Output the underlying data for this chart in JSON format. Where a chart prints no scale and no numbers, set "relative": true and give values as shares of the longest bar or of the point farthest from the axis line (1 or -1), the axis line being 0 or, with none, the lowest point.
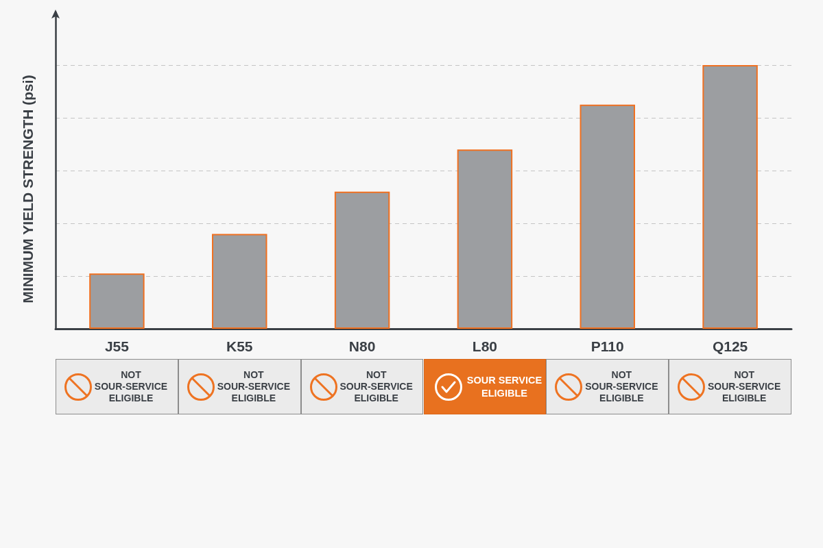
{
  "chart_data": {
    "type": "bar",
    "ylabel": "MINIMUM YIELD STRENGTH (psi)",
    "categories": [
      "J55",
      "K55",
      "N80",
      "L80",
      "P110",
      "Q125"
    ],
    "values": [
      0.21,
      0.36,
      0.52,
      0.68,
      0.85,
      1
    ],
    "color": "#9c9ea1",
    "relative": true,
    "grid": "y",
    "annotations": [
      "NOT SOUR-SERVICE ELIGIBLE",
      "NOT SOUR-SERVICE ELIGIBLE",
      "NOT SOUR-SERVICE ELIGIBLE",
      "SOUR SERVICE ELIGIBLE",
      "NOT SOUR-SERVICE ELIGIBLE",
      "NOT SOUR-SERVICE ELIGIBLE"
    ]
  }
}
